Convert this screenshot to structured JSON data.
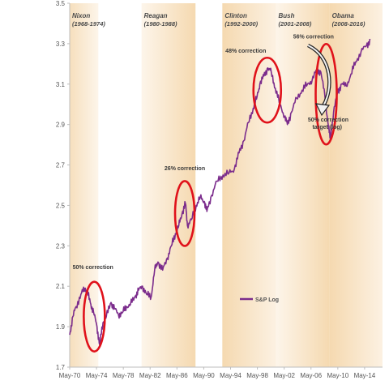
{
  "chart_data": {
    "type": "line",
    "title": "",
    "xlabel": "",
    "ylabel": "",
    "ylim": [
      1.7,
      3.5
    ],
    "xlim": [
      1970.33,
      2017.0
    ],
    "yticks": [
      1.7,
      1.9,
      2.1,
      2.3,
      2.5,
      2.7,
      2.9,
      3.1,
      3.3,
      3.5
    ],
    "ytick_labels": [
      "1.7",
      "1.9",
      "2.1",
      "2.3",
      "2.5",
      "2.7",
      "2.9",
      "3.1",
      "3.3",
      "3.5"
    ],
    "xticks": [
      "May-70",
      "May-74",
      "May-78",
      "May-82",
      "May-86",
      "May-90",
      "May-94",
      "May-98",
      "May-02",
      "May-06",
      "May-10",
      "May-14"
    ],
    "xtick_years": [
      1970.33,
      1974.33,
      1978.33,
      1982.33,
      1986.33,
      1990.33,
      1994.33,
      1998.33,
      2002.33,
      2006.33,
      2010.33,
      2014.33
    ],
    "grid": false,
    "legend_position": "bottom-right",
    "series": [
      {
        "name": "S&P Log",
        "color": "#7b2c8c",
        "x": [
          1970.33,
          1970.8,
          1971.3,
          1972.0,
          1972.6,
          1972.9,
          1973.4,
          1973.9,
          1974.4,
          1974.8,
          1975.3,
          1975.8,
          1976.5,
          1977.0,
          1977.6,
          1978.2,
          1978.8,
          1979.4,
          1980.1,
          1980.6,
          1981.2,
          1981.8,
          1982.5,
          1983.0,
          1983.5,
          1984.2,
          1984.9,
          1985.5,
          1986.1,
          1986.6,
          1987.1,
          1987.6,
          1987.9,
          1988.5,
          1989.2,
          1989.8,
          1990.4,
          1990.8,
          1991.5,
          1992.3,
          1993.2,
          1994.1,
          1994.9,
          1995.6,
          1996.3,
          1997.0,
          1997.7,
          1998.3,
          1998.7,
          1999.3,
          1999.9,
          2000.4,
          2001.0,
          2001.7,
          2002.4,
          2002.8,
          2003.4,
          2004.2,
          2005.0,
          2005.8,
          2006.5,
          2007.2,
          2007.8,
          2008.4,
          2008.9,
          2009.2,
          2009.7,
          2010.3,
          2010.9,
          2011.6,
          2012.3,
          2013.0,
          2013.8,
          2014.6,
          2015.2
        ],
        "values": [
          1.86,
          1.95,
          2.0,
          2.06,
          2.09,
          2.08,
          2.02,
          1.97,
          1.9,
          1.81,
          1.92,
          1.95,
          2.02,
          1.99,
          1.96,
          1.97,
          2.0,
          2.01,
          2.05,
          2.08,
          2.1,
          2.06,
          2.05,
          2.18,
          2.22,
          2.18,
          2.24,
          2.3,
          2.36,
          2.4,
          2.46,
          2.51,
          2.4,
          2.43,
          2.5,
          2.54,
          2.52,
          2.47,
          2.55,
          2.62,
          2.65,
          2.66,
          2.68,
          2.76,
          2.82,
          2.91,
          2.98,
          3.04,
          3.1,
          3.14,
          3.18,
          3.16,
          3.08,
          3.0,
          2.94,
          2.9,
          2.96,
          3.03,
          3.07,
          3.1,
          3.12,
          3.17,
          3.16,
          3.04,
          2.9,
          2.83,
          2.96,
          3.06,
          3.1,
          3.09,
          3.15,
          3.21,
          3.26,
          3.29,
          3.32
        ]
      }
    ],
    "shaded_periods": [
      {
        "name": "Nixon",
        "years": "(1968-1974)",
        "start": 1970.33,
        "end": 1974.6
      },
      {
        "name": "Reagan",
        "years": "(1980-1988)",
        "start": 1981.05,
        "end": 1989.1
      },
      {
        "name": "Clinton",
        "years": "(1992-2000)",
        "start": 1993.1,
        "end": 2001.1
      },
      {
        "name": "Bush",
        "years": "(2001-2008)",
        "start": 2001.1,
        "end": 2009.1
      },
      {
        "name": "Obama",
        "years": "(2008-2016)",
        "start": 2009.1,
        "end": 2017.0
      }
    ],
    "annotations": [
      {
        "text": "50% correction",
        "x": 1974.0,
        "y": 1.95
      },
      {
        "text": "26% correction",
        "x": 1987.4,
        "y": 2.47
      },
      {
        "text": "48% correction",
        "x": 1999.9,
        "y": 3.08
      },
      {
        "text": "56% correction",
        "x": 2008.5,
        "y": 3.05
      }
    ],
    "target_annotation": {
      "line1": "50% correction",
      "line2": "target (log)"
    }
  }
}
